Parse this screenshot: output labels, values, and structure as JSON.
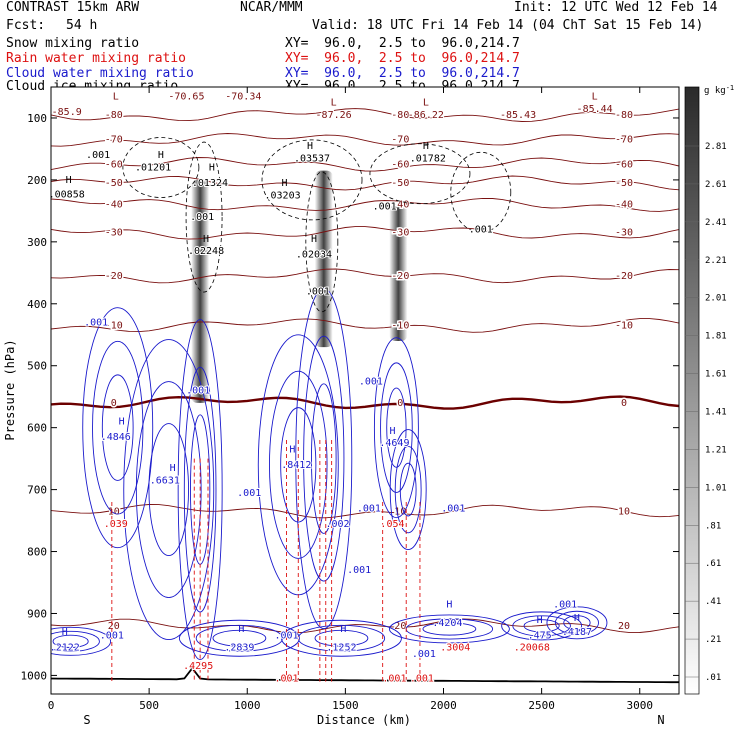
{
  "header": {
    "model": "CONTRAST 15km ARW",
    "org": "NCAR/MMM",
    "init": "Init: 12 UTC Wed 12 Feb 14",
    "fcst_label": "Fcst:",
    "fcst_value": "54 h",
    "valid": "Valid: 18 UTC Fri 14 Feb 14 (04 ChT Sat 15 Feb 14)"
  },
  "legend": [
    {
      "name": "Snow mixing ratio",
      "xy": "XY=  96.0,  2.5 to  96.0,214.7",
      "color": "#000000"
    },
    {
      "name": "Rain water mixing ratio",
      "xy": "XY=  96.0,  2.5 to  96.0,214.7",
      "color": "#dd1111"
    },
    {
      "name": "Cloud water mixing ratio",
      "xy": "XY=  96.0,  2.5 to  96.0,214.7",
      "color": "#1a1acc"
    },
    {
      "name": "Cloud ice mixing ratio",
      "xy": "XY=  96.0,  2.5 to  96.0,214.7",
      "color": "#000000"
    }
  ],
  "colors": {
    "temperature": "#7a1010",
    "freezing": "#6b0000",
    "cloud_water": "#1a1acc",
    "rain": "#dd1111",
    "ice": "#000000",
    "terrain": "#000000"
  },
  "chart_data": {
    "type": "contour",
    "xlabel": "Distance (km)",
    "ylabel": "Pressure (hPa)",
    "x_ticks": [
      0,
      500,
      1000,
      1500,
      2000,
      2500,
      3000
    ],
    "y_ticks": [
      100,
      200,
      300,
      400,
      500,
      600,
      700,
      800,
      900,
      1000
    ],
    "xlim": [
      0,
      3200
    ],
    "ylim": [
      1030,
      50
    ],
    "left_end_label": "S",
    "right_end_label": "N",
    "colorbar": {
      "unit": "g kg",
      "unit_exp": "-1",
      "labels": [
        "2.81",
        "2.61",
        "2.41",
        "2.21",
        "2.01",
        "1.81",
        "1.61",
        "1.41",
        "1.21",
        "1.01",
        ".81",
        ".61",
        ".41",
        ".21",
        ".01"
      ]
    },
    "temperature_contours": [
      {
        "label": "-80",
        "p": 95
      },
      {
        "label": "-70",
        "p": 135
      },
      {
        "label": "-60",
        "p": 175
      },
      {
        "label": "-50",
        "p": 205
      },
      {
        "label": "-40",
        "p": 240
      },
      {
        "label": "-30",
        "p": 285
      },
      {
        "label": "-20",
        "p": 355
      },
      {
        "label": "-10",
        "p": 435
      },
      {
        "label": "0",
        "p": 560
      },
      {
        "label": "10",
        "p": 735
      },
      {
        "label": "20",
        "p": 920
      }
    ],
    "cloud_water_labels": [
      {
        "text": ".4846",
        "x": 330,
        "p": 620
      },
      {
        "text": ".6631",
        "x": 580,
        "p": 690
      },
      {
        "text": ".8412",
        "x": 1250,
        "p": 665
      },
      {
        "text": ".4649",
        "x": 1750,
        "p": 630
      },
      {
        "text": ".2122",
        "x": 70,
        "p": 960
      },
      {
        "text": ".2839",
        "x": 960,
        "p": 960
      },
      {
        "text": ".1252",
        "x": 1480,
        "p": 960
      },
      {
        "text": ".4204",
        "x": 2020,
        "p": 920
      },
      {
        "text": ".475",
        "x": 2490,
        "p": 940
      },
      {
        "text": ".4187",
        "x": 2680,
        "p": 935
      },
      {
        "text": ".001",
        "x": 230,
        "p": 435
      },
      {
        "text": ".001",
        "x": 750,
        "p": 545
      },
      {
        "text": ".001",
        "x": 1630,
        "p": 530
      },
      {
        "text": ".001",
        "x": 1010,
        "p": 710
      },
      {
        "text": ".001",
        "x": 2050,
        "p": 735
      },
      {
        "text": ".001",
        "x": 1570,
        "p": 835
      },
      {
        "text": ".001",
        "x": 310,
        "p": 940
      },
      {
        "text": ".001",
        "x": 1200,
        "p": 940
      },
      {
        "text": ".001",
        "x": 1900,
        "p": 970
      },
      {
        "text": ".001",
        "x": 2620,
        "p": 890
      },
      {
        "text": ".001",
        "x": 1620,
        "p": 735
      },
      {
        "text": ".002",
        "x": 1460,
        "p": 760
      }
    ],
    "rain_labels": [
      {
        "text": ".039",
        "x": 330,
        "p": 760
      },
      {
        "text": ".054",
        "x": 1740,
        "p": 760
      },
      {
        "text": ".3004",
        "x": 2060,
        "p": 960
      },
      {
        "text": ".20068",
        "x": 2450,
        "p": 960
      },
      {
        "text": ".001",
        "x": 1200,
        "p": 1010
      },
      {
        "text": ".001",
        "x": 1750,
        "p": 1010
      },
      {
        "text": ".001",
        "x": 1890,
        "p": 1010
      },
      {
        "text": ".4295",
        "x": 750,
        "p": 990
      }
    ],
    "ice_labels": [
      {
        "text": ".001",
        "x": 240,
        "p": 165
      },
      {
        "text": ".01201",
        "x": 520,
        "p": 185
      },
      {
        "text": ".01324",
        "x": 810,
        "p": 210
      },
      {
        "text": ".00858",
        "x": 80,
        "p": 228
      },
      {
        "text": ".03537",
        "x": 1330,
        "p": 170
      },
      {
        "text": ".03203",
        "x": 1180,
        "p": 230
      },
      {
        "text": ".01782",
        "x": 1920,
        "p": 170
      },
      {
        "text": ".001",
        "x": 770,
        "p": 265
      },
      {
        "text": ".02248",
        "x": 790,
        "p": 320
      },
      {
        "text": ".02034",
        "x": 1340,
        "p": 325
      },
      {
        "text": ".001",
        "x": 1360,
        "p": 385
      },
      {
        "text": ".001",
        "x": 1700,
        "p": 248
      },
      {
        "text": ".001",
        "x": 2190,
        "p": 285
      }
    ],
    "high_markers": [
      {
        "x": 360,
        "p": 595
      },
      {
        "x": 620,
        "p": 670
      },
      {
        "x": 1230,
        "p": 640
      },
      {
        "x": 1740,
        "p": 610
      },
      {
        "x": 70,
        "p": 935
      },
      {
        "x": 970,
        "p": 930
      },
      {
        "x": 1490,
        "p": 930
      },
      {
        "x": 2030,
        "p": 890
      },
      {
        "x": 2490,
        "p": 915
      },
      {
        "x": 2680,
        "p": 912
      },
      {
        "x": 560,
        "p": 165
      },
      {
        "x": 820,
        "p": 185
      },
      {
        "x": 90,
        "p": 205
      },
      {
        "x": 1320,
        "p": 150
      },
      {
        "x": 1190,
        "p": 210
      },
      {
        "x": 1910,
        "p": 150
      },
      {
        "x": 790,
        "p": 300
      },
      {
        "x": 1340,
        "p": 300
      }
    ],
    "upper_labels": [
      {
        "text": "L",
        "x": 330,
        "p": 70,
        "color": "#7a1010"
      },
      {
        "text": "-85.9",
        "x": 80,
        "p": 95,
        "color": "#7a1010"
      },
      {
        "text": "-70.65",
        "x": 690,
        "p": 70,
        "color": "#7a1010"
      },
      {
        "text": "-70.34",
        "x": 980,
        "p": 70,
        "color": "#7a1010"
      },
      {
        "text": "L",
        "x": 1440,
        "p": 80,
        "color": "#7a1010"
      },
      {
        "text": "-87.26",
        "x": 1440,
        "p": 100,
        "color": "#7a1010"
      },
      {
        "text": "L",
        "x": 1910,
        "p": 80,
        "color": "#7a1010"
      },
      {
        "text": "-86.22",
        "x": 1910,
        "p": 100,
        "color": "#7a1010"
      },
      {
        "text": "-85.43",
        "x": 2380,
        "p": 100,
        "color": "#7a1010"
      },
      {
        "text": "L",
        "x": 2770,
        "p": 70,
        "color": "#7a1010"
      },
      {
        "text": "-85.44",
        "x": 2770,
        "p": 90,
        "color": "#7a1010"
      }
    ],
    "snow_columns": [
      {
        "x": 760,
        "top": 200,
        "bottom": 560
      },
      {
        "x": 1390,
        "top": 185,
        "bottom": 470
      },
      {
        "x": 1770,
        "top": 240,
        "bottom": 460
      }
    ]
  }
}
